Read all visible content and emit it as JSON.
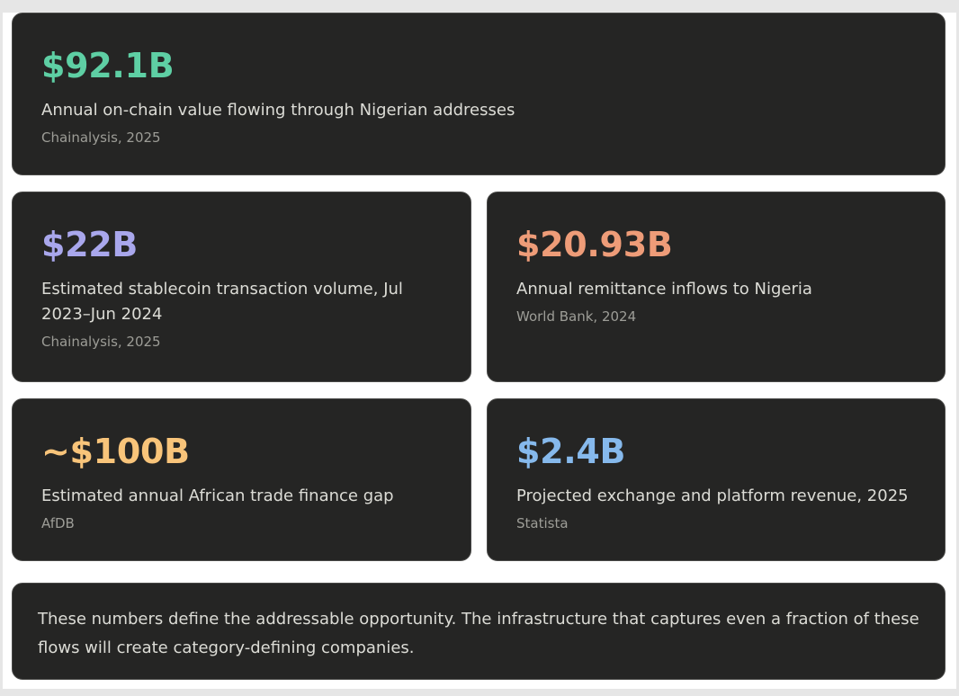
{
  "colors": {
    "page_background": "#e6e6e6",
    "card_background": "#252524",
    "card_border": "#4a4a48",
    "text_primary": "#dcdcd6",
    "text_secondary": "#9d9d97"
  },
  "stats": [
    {
      "value": "$92.1B",
      "description": "Annual on-chain value flowing through Nigerian addresses",
      "source": "Chainalysis, 2025",
      "color": "#5ecfa4"
    },
    {
      "value": "$22B",
      "description": "Estimated stablecoin transaction volume, Jul 2023–Jun 2024",
      "source": "Chainalysis, 2025",
      "color": "#a9a7ec"
    },
    {
      "value": "$20.93B",
      "description": "Annual remittance inflows to Nigeria",
      "source": "World Bank, 2024",
      "color": "#ee9c78"
    },
    {
      "value": "~$100B",
      "description": "Estimated annual African trade finance gap",
      "source": "AfDB",
      "color": "#f8c47a"
    },
    {
      "value": "$2.4B",
      "description": "Projected exchange and platform revenue, 2025",
      "source": "Statista",
      "color": "#86b9ec"
    }
  ],
  "footer": {
    "text": "These numbers define the addressable opportunity. The infrastructure that captures even a fraction of these flows will create category-defining companies."
  }
}
